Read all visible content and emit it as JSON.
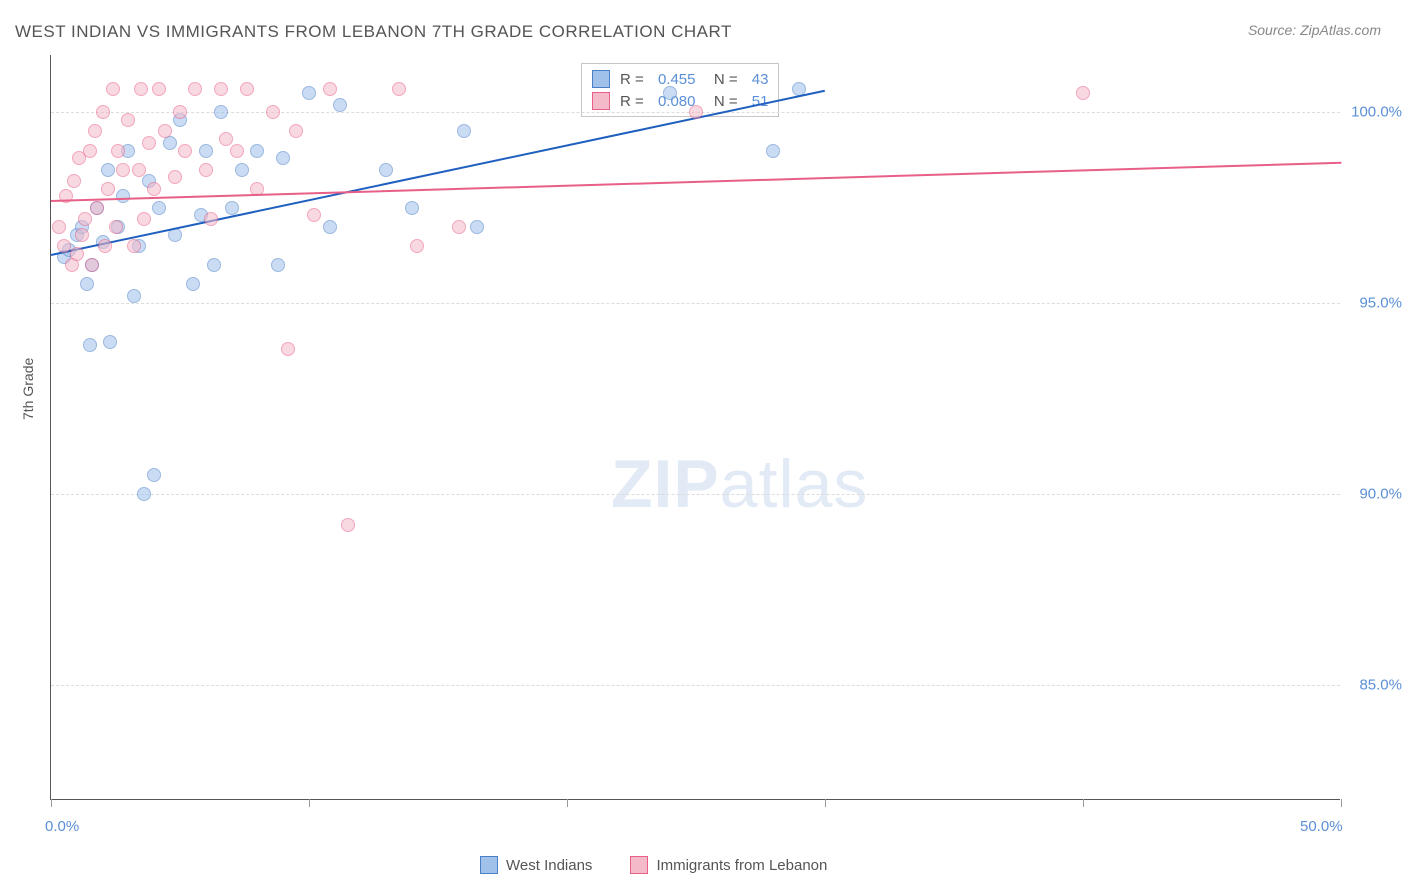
{
  "title": "WEST INDIAN VS IMMIGRANTS FROM LEBANON 7TH GRADE CORRELATION CHART",
  "source": "Source: ZipAtlas.com",
  "y_axis_label": "7th Grade",
  "watermark_bold": "ZIP",
  "watermark_light": "atlas",
  "chart": {
    "type": "scatter",
    "xlim": [
      0,
      50
    ],
    "ylim": [
      82,
      101.5
    ],
    "x_ticks": [
      0,
      10,
      20,
      30,
      40,
      50
    ],
    "x_tick_labels": {
      "0": "0.0%",
      "50": "50.0%"
    },
    "y_grid": [
      85,
      90,
      95,
      100
    ],
    "y_tick_labels": {
      "85": "85.0%",
      "90": "90.0%",
      "95": "95.0%",
      "100": "100.0%"
    },
    "background_color": "#ffffff",
    "grid_color": "#dcdcdc",
    "axis_color": "#555555",
    "label_color": "#5b8fd6",
    "marker_radius": 7,
    "marker_opacity": 0.55,
    "series": [
      {
        "name": "West Indians",
        "fill": "#9fc1ea",
        "stroke": "#4a7fc7",
        "trend_color": "#1f5fbf",
        "trend": {
          "x1": 0,
          "y1": 96.3,
          "x2": 30,
          "y2": 100.6
        },
        "R": "0.455",
        "N": "43",
        "points": [
          [
            0.5,
            96.2
          ],
          [
            0.7,
            96.4
          ],
          [
            1.0,
            96.8
          ],
          [
            1.2,
            97.0
          ],
          [
            1.4,
            95.5
          ],
          [
            1.5,
            93.9
          ],
          [
            1.6,
            96.0
          ],
          [
            1.8,
            97.5
          ],
          [
            2.0,
            96.6
          ],
          [
            2.2,
            98.5
          ],
          [
            2.3,
            94.0
          ],
          [
            2.6,
            97.0
          ],
          [
            2.8,
            97.8
          ],
          [
            3.0,
            99.0
          ],
          [
            3.2,
            95.2
          ],
          [
            3.4,
            96.5
          ],
          [
            3.6,
            90.0
          ],
          [
            3.8,
            98.2
          ],
          [
            4.0,
            90.5
          ],
          [
            4.2,
            97.5
          ],
          [
            4.6,
            99.2
          ],
          [
            4.8,
            96.8
          ],
          [
            5.0,
            99.8
          ],
          [
            5.5,
            95.5
          ],
          [
            5.8,
            97.3
          ],
          [
            6.0,
            99.0
          ],
          [
            6.3,
            96.0
          ],
          [
            6.6,
            100.0
          ],
          [
            7.0,
            97.5
          ],
          [
            7.4,
            98.5
          ],
          [
            8.0,
            99.0
          ],
          [
            8.8,
            96.0
          ],
          [
            9.0,
            98.8
          ],
          [
            10.0,
            100.5
          ],
          [
            10.8,
            97.0
          ],
          [
            11.2,
            100.2
          ],
          [
            13.0,
            98.5
          ],
          [
            14.0,
            97.5
          ],
          [
            16.0,
            99.5
          ],
          [
            16.5,
            97.0
          ],
          [
            24.0,
            100.5
          ],
          [
            28.0,
            99.0
          ],
          [
            29.0,
            100.6
          ]
        ]
      },
      {
        "name": "Immigrants from Lebanon",
        "fill": "#f4bac9",
        "stroke": "#e85f87",
        "trend_color": "#e85f87",
        "trend": {
          "x1": 0,
          "y1": 97.7,
          "x2": 50,
          "y2": 98.7
        },
        "R": "0.080",
        "N": "51",
        "points": [
          [
            0.3,
            97.0
          ],
          [
            0.5,
            96.5
          ],
          [
            0.6,
            97.8
          ],
          [
            0.8,
            96.0
          ],
          [
            0.9,
            98.2
          ],
          [
            1.0,
            96.3
          ],
          [
            1.1,
            98.8
          ],
          [
            1.2,
            96.8
          ],
          [
            1.3,
            97.2
          ],
          [
            1.5,
            99.0
          ],
          [
            1.6,
            96.0
          ],
          [
            1.7,
            99.5
          ],
          [
            1.8,
            97.5
          ],
          [
            2.0,
            100.0
          ],
          [
            2.1,
            96.5
          ],
          [
            2.2,
            98.0
          ],
          [
            2.4,
            100.6
          ],
          [
            2.5,
            97.0
          ],
          [
            2.6,
            99.0
          ],
          [
            2.8,
            98.5
          ],
          [
            3.0,
            99.8
          ],
          [
            3.2,
            96.5
          ],
          [
            3.4,
            98.5
          ],
          [
            3.5,
            100.6
          ],
          [
            3.6,
            97.2
          ],
          [
            3.8,
            99.2
          ],
          [
            4.0,
            98.0
          ],
          [
            4.2,
            100.6
          ],
          [
            4.4,
            99.5
          ],
          [
            4.8,
            98.3
          ],
          [
            5.0,
            100.0
          ],
          [
            5.2,
            99.0
          ],
          [
            5.6,
            100.6
          ],
          [
            6.0,
            98.5
          ],
          [
            6.2,
            97.2
          ],
          [
            6.6,
            100.6
          ],
          [
            6.8,
            99.3
          ],
          [
            7.2,
            99.0
          ],
          [
            7.6,
            100.6
          ],
          [
            8.0,
            98.0
          ],
          [
            8.6,
            100.0
          ],
          [
            9.2,
            93.8
          ],
          [
            9.5,
            99.5
          ],
          [
            10.2,
            97.3
          ],
          [
            10.8,
            100.6
          ],
          [
            11.5,
            89.2
          ],
          [
            13.5,
            100.6
          ],
          [
            14.2,
            96.5
          ],
          [
            15.8,
            97.0
          ],
          [
            25.0,
            100.0
          ],
          [
            40.0,
            100.5
          ]
        ]
      }
    ]
  },
  "legend_bottom": [
    {
      "label": "West Indians",
      "fill": "#9fc1ea",
      "stroke": "#4a7fc7"
    },
    {
      "label": "Immigrants from Lebanon",
      "fill": "#f4bac9",
      "stroke": "#e85f87"
    }
  ]
}
